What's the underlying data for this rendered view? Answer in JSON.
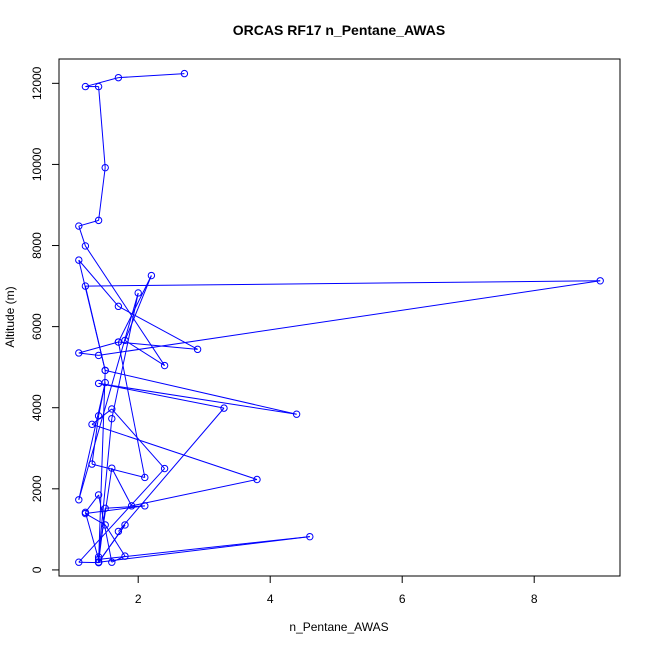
{
  "chart_data": {
    "type": "line",
    "title": "ORCAS RF17 n_Pentane_AWAS",
    "xlabel": "n_Pentane_AWAS",
    "ylabel": "Altitude (m)",
    "xlim": [
      0.8,
      9.3
    ],
    "ylim": [
      -150,
      12600
    ],
    "xticks": [
      2,
      4,
      6,
      8
    ],
    "yticks": [
      0,
      2000,
      4000,
      6000,
      8000,
      10000,
      12000
    ],
    "series_color": "#0000ff",
    "marker": "open-circle",
    "series": [
      {
        "x": [
          2.7,
          1.7,
          1.2,
          1.4,
          1.5,
          1.4,
          1.1,
          1.2,
          2.4,
          1.8,
          2.2,
          1.7,
          1.1,
          1.4,
          9.0,
          1.2,
          1.5,
          1.1,
          1.7,
          2.9,
          1.7,
          2.1,
          1.3,
          1.4,
          1.5,
          1.1,
          2.0,
          1.6,
          1.4,
          1.6,
          1.9,
          3.8,
          1.3,
          1.6,
          2.4,
          1.1,
          1.4,
          1.4,
          1.5,
          2.1,
          1.2,
          1.5,
          1.8,
          1.6,
          1.4,
          1.2,
          1.4,
          4.6,
          1.4,
          1.8,
          1.4,
          1.5,
          4.4,
          1.4,
          3.3,
          1.7
        ],
        "y": [
          12240,
          12140,
          11920,
          11920,
          9920,
          8620,
          8480,
          7990,
          5040,
          5660,
          7260,
          5620,
          5350,
          5290,
          7130,
          7000,
          4920,
          7640,
          6500,
          5440,
          5620,
          2280,
          2610,
          3800,
          4620,
          1730,
          6830,
          3730,
          320,
          2510,
          1580,
          2230,
          3590,
          3970,
          2500,
          190,
          180,
          190,
          1520,
          1580,
          1390,
          1110,
          340,
          190,
          1850,
          1420,
          260,
          820,
          190,
          1110,
          190,
          4920,
          3840,
          4600,
          3990,
          950
        ]
      }
    ]
  }
}
